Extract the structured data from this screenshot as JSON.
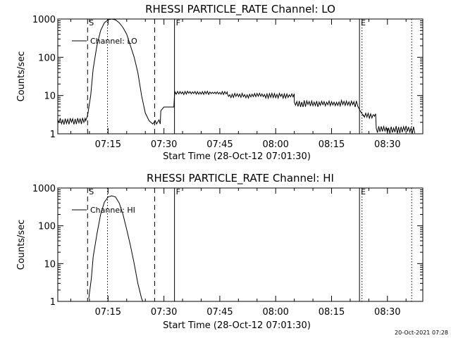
{
  "footer": {
    "timestamp": "20-Oct-2021 07:28"
  },
  "chart_data": [
    {
      "type": "line",
      "title": "RHESSI PARTICLE_RATE Channel: LO",
      "xlabel": "Start Time (28-Oct-12 07:01:30)",
      "ylabel": "Counts/sec",
      "y_scale": "log",
      "xlim": [
        "07:01:30",
        "08:39:30"
      ],
      "ylim": [
        1,
        1000
      ],
      "x_ticks": [
        "07:15",
        "07:30",
        "07:45",
        "08:00",
        "08:15",
        "08:30"
      ],
      "y_ticks": [
        "1",
        "10",
        "100",
        "1000"
      ],
      "legend": {
        "position": "top-left",
        "entries": [
          "Channel: LO"
        ]
      },
      "markers": [
        {
          "label": "S",
          "time": "07:09:30",
          "style": "dashed"
        },
        {
          "label": "",
          "time": "07:14:50",
          "style": "dotted"
        },
        {
          "label": "",
          "time": "07:27:30",
          "style": "dashed"
        },
        {
          "label": "F",
          "time": "07:32:50",
          "style": "solid"
        },
        {
          "label": "E",
          "time": "08:22:30",
          "style": "solid"
        },
        {
          "label": "",
          "time": "08:23:10",
          "style": "dotted"
        },
        {
          "label": "",
          "time": "08:36:30",
          "style": "dotted"
        }
      ],
      "series": [
        {
          "name": "Channel: LO",
          "noise": [
            {
              "from": "07:01:30",
              "to": "07:09:00",
              "low": 1.7,
              "high": 2.6
            },
            {
              "from": "07:33:00",
              "to": "07:47:00",
              "low": 10.5,
              "high": 13
            },
            {
              "from": "07:47:00",
              "to": "08:05:00",
              "low": 8.5,
              "high": 11.5
            },
            {
              "from": "08:05:00",
              "to": "08:22:00",
              "low": 5,
              "high": 7.5
            },
            {
              "from": "08:23:30",
              "to": "08:27:00",
              "low": 2.5,
              "high": 3.5
            },
            {
              "from": "08:27:00",
              "to": "08:37:30",
              "low": 1,
              "high": 1.6
            }
          ],
          "points": [
            [
              "07:09:00",
              2.2
            ],
            [
              "07:09:30",
              3
            ],
            [
              "07:10:20",
              10
            ],
            [
              "07:11:00",
              50
            ],
            [
              "07:12:00",
              200
            ],
            [
              "07:13:00",
              500
            ],
            [
              "07:14:00",
              800
            ],
            [
              "07:15:00",
              950
            ],
            [
              "07:16:00",
              1000
            ],
            [
              "07:17:00",
              950
            ],
            [
              "07:18:00",
              800
            ],
            [
              "07:19:00",
              600
            ],
            [
              "07:20:00",
              400
            ],
            [
              "07:21:00",
              200
            ],
            [
              "07:22:00",
              100
            ],
            [
              "07:23:00",
              40
            ],
            [
              "07:24:00",
              10
            ],
            [
              "07:25:00",
              3.5
            ],
            [
              "07:26:00",
              2.2
            ],
            [
              "07:27:00",
              1.8
            ],
            [
              "07:27:40",
              2.2
            ],
            [
              "07:28:00",
              1.8
            ],
            [
              "07:28:40",
              2.3
            ],
            [
              "07:29:00",
              1.8
            ],
            [
              "07:29:10",
              4
            ],
            [
              "07:30:00",
              5
            ],
            [
              "07:32:40",
              5
            ],
            [
              "07:32:50",
              10
            ],
            [
              "07:33:00",
              12
            ],
            [
              "08:22:00",
              5.5
            ],
            [
              "08:22:40",
              4
            ],
            [
              "08:23:30",
              3
            ],
            [
              "08:26:30",
              3
            ],
            [
              "08:27:00",
              1.5
            ]
          ]
        }
      ]
    },
    {
      "type": "line",
      "title": "RHESSI PARTICLE_RATE Channel: HI",
      "xlabel": "Start Time (28-Oct-12 07:01:30)",
      "ylabel": "Counts/sec",
      "y_scale": "log",
      "xlim": [
        "07:01:30",
        "08:39:30"
      ],
      "ylim": [
        1,
        1000
      ],
      "x_ticks": [
        "07:15",
        "07:30",
        "07:45",
        "08:00",
        "08:15",
        "08:30"
      ],
      "y_ticks": [
        "1",
        "10",
        "100",
        "1000"
      ],
      "legend": {
        "position": "top-left",
        "entries": [
          "Channel: HI"
        ]
      },
      "markers": [
        {
          "label": "S",
          "time": "07:09:30",
          "style": "dashed"
        },
        {
          "label": "",
          "time": "07:14:50",
          "style": "dotted"
        },
        {
          "label": "",
          "time": "07:27:30",
          "style": "dashed"
        },
        {
          "label": "F",
          "time": "07:32:50",
          "style": "solid"
        },
        {
          "label": "E",
          "time": "08:22:30",
          "style": "solid"
        },
        {
          "label": "",
          "time": "08:23:10",
          "style": "dotted"
        },
        {
          "label": "",
          "time": "08:36:30",
          "style": "dotted"
        }
      ],
      "series": [
        {
          "name": "Channel: HI",
          "noise": [],
          "points": [
            [
              "07:09:50",
              1.2
            ],
            [
              "07:10:30",
              4
            ],
            [
              "07:11:00",
              15
            ],
            [
              "07:12:00",
              60
            ],
            [
              "07:13:00",
              200
            ],
            [
              "07:14:00",
              420
            ],
            [
              "07:15:00",
              580
            ],
            [
              "07:16:00",
              620
            ],
            [
              "07:17:00",
              580
            ],
            [
              "07:18:00",
              400
            ],
            [
              "07:19:00",
              200
            ],
            [
              "07:20:00",
              80
            ],
            [
              "07:21:00",
              30
            ],
            [
              "07:22:00",
              10
            ],
            [
              "07:23:00",
              3
            ],
            [
              "07:24:00",
              1.2
            ],
            [
              "07:24:20",
              1
            ]
          ]
        }
      ]
    }
  ]
}
